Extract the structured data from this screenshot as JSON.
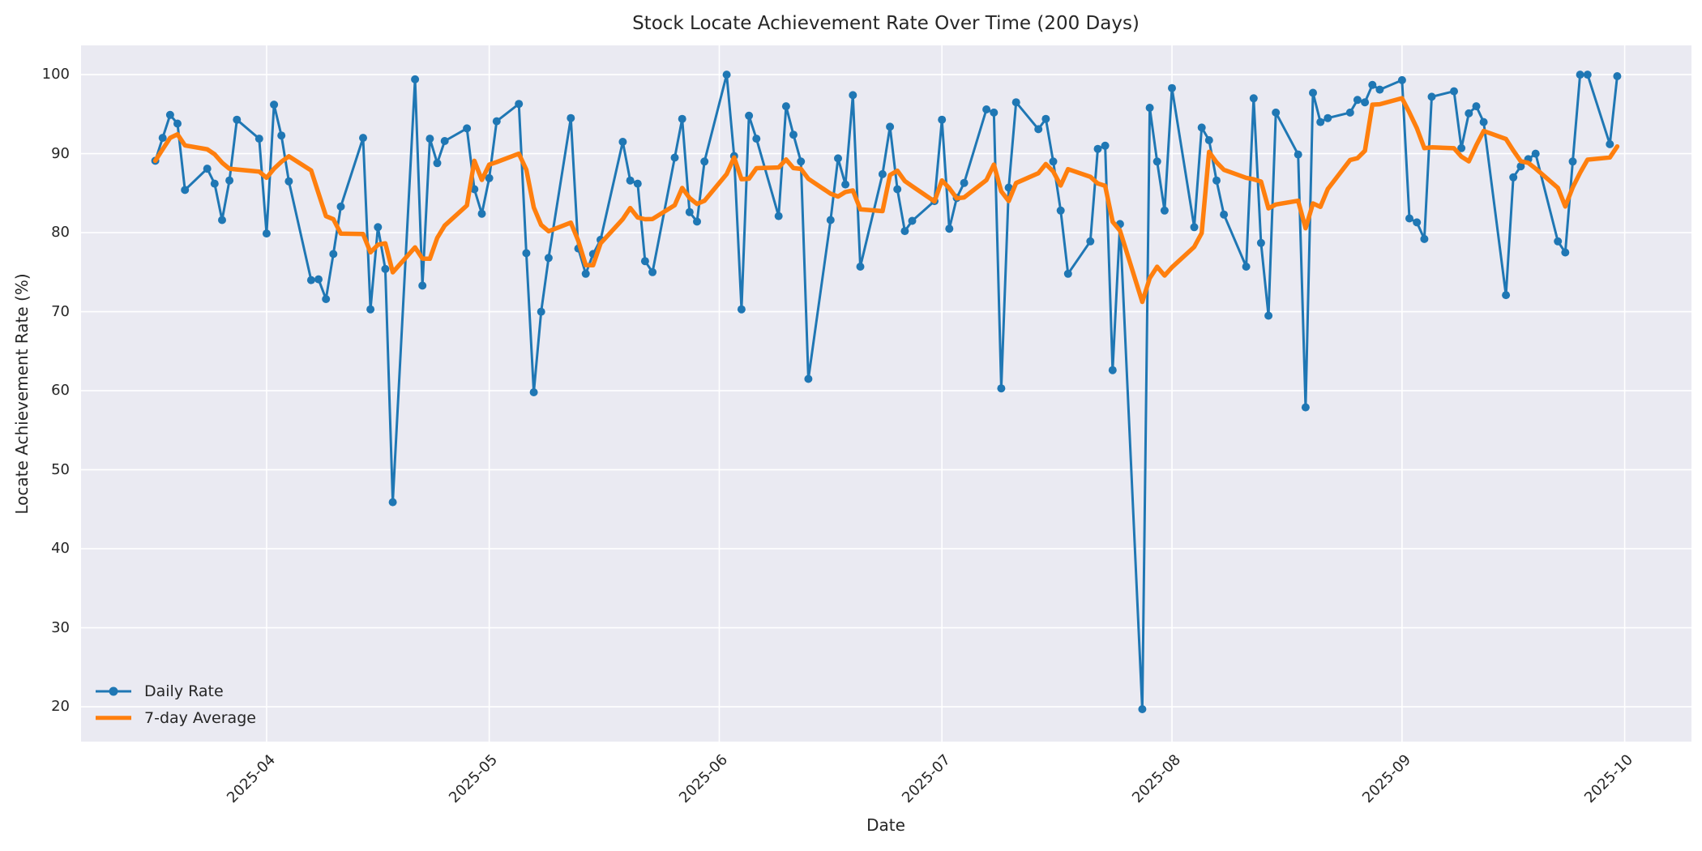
{
  "chart_data": {
    "type": "line",
    "title": "Stock Locate Achievement Rate Over Time (200 Days)",
    "xlabel": "Date",
    "ylabel": "Locate Achievement Rate (%)",
    "x_ticks": [
      "2025-04",
      "2025-05",
      "2025-06",
      "2025-07",
      "2025-08",
      "2025-09",
      "2025-10"
    ],
    "y_ticks": [
      20,
      30,
      40,
      50,
      60,
      70,
      80,
      90,
      100
    ],
    "xlim": [
      "2025-03-07",
      "2025-10-10"
    ],
    "ylim": [
      15.6,
      103.7
    ],
    "grid": true,
    "legend_position": "lower left",
    "plot_bg_color": "#eaeaf2",
    "grid_color": "#ffffff",
    "text_color": "#262626",
    "series": [
      {
        "name": "Daily Rate",
        "color": "#1f77b4",
        "marker": "circle",
        "line_width": 3,
        "dates": [
          "2025-03-17",
          "2025-03-18",
          "2025-03-19",
          "2025-03-20",
          "2025-03-21",
          "2025-03-24",
          "2025-03-25",
          "2025-03-26",
          "2025-03-27",
          "2025-03-28",
          "2025-03-31",
          "2025-04-01",
          "2025-04-02",
          "2025-04-03",
          "2025-04-04",
          "2025-04-07",
          "2025-04-08",
          "2025-04-09",
          "2025-04-10",
          "2025-04-11",
          "2025-04-14",
          "2025-04-15",
          "2025-04-16",
          "2025-04-17",
          "2025-04-18",
          "2025-04-21",
          "2025-04-22",
          "2025-04-23",
          "2025-04-24",
          "2025-04-25",
          "2025-04-28",
          "2025-04-29",
          "2025-04-30",
          "2025-05-01",
          "2025-05-02",
          "2025-05-05",
          "2025-05-06",
          "2025-05-07",
          "2025-05-08",
          "2025-05-09",
          "2025-05-12",
          "2025-05-13",
          "2025-05-14",
          "2025-05-15",
          "2025-05-16",
          "2025-05-19",
          "2025-05-20",
          "2025-05-21",
          "2025-05-22",
          "2025-05-23",
          "2025-05-26",
          "2025-05-27",
          "2025-05-28",
          "2025-05-29",
          "2025-05-30",
          "2025-06-02",
          "2025-06-03",
          "2025-06-04",
          "2025-06-05",
          "2025-06-06",
          "2025-06-09",
          "2025-06-10",
          "2025-06-11",
          "2025-06-12",
          "2025-06-13",
          "2025-06-16",
          "2025-06-17",
          "2025-06-18",
          "2025-06-19",
          "2025-06-20",
          "2025-06-23",
          "2025-06-24",
          "2025-06-25",
          "2025-06-26",
          "2025-06-27",
          "2025-06-30",
          "2025-07-01",
          "2025-07-02",
          "2025-07-03",
          "2025-07-04",
          "2025-07-07",
          "2025-07-08",
          "2025-07-09",
          "2025-07-10",
          "2025-07-11",
          "2025-07-14",
          "2025-07-15",
          "2025-07-16",
          "2025-07-17",
          "2025-07-18",
          "2025-07-21",
          "2025-07-22",
          "2025-07-23",
          "2025-07-24",
          "2025-07-25",
          "2025-07-28",
          "2025-07-29",
          "2025-07-30",
          "2025-07-31",
          "2025-08-01",
          "2025-08-04",
          "2025-08-05",
          "2025-08-06",
          "2025-08-07",
          "2025-08-08",
          "2025-08-11",
          "2025-08-12",
          "2025-08-13",
          "2025-08-14",
          "2025-08-15",
          "2025-08-18",
          "2025-08-19",
          "2025-08-20",
          "2025-08-21",
          "2025-08-22",
          "2025-08-25",
          "2025-08-26",
          "2025-08-27",
          "2025-08-28",
          "2025-08-29",
          "2025-09-01",
          "2025-09-02",
          "2025-09-03",
          "2025-09-04",
          "2025-09-05",
          "2025-09-08",
          "2025-09-09",
          "2025-09-10",
          "2025-09-11",
          "2025-09-12",
          "2025-09-15",
          "2025-09-16",
          "2025-09-17",
          "2025-09-18",
          "2025-09-19",
          "2025-09-22",
          "2025-09-23",
          "2025-09-24",
          "2025-09-25",
          "2025-09-26",
          "2025-09-29",
          "2025-09-30"
        ],
        "values": [
          89.1,
          92.0,
          94.9,
          93.8,
          85.4,
          88.1,
          86.2,
          81.6,
          86.6,
          94.3,
          91.9,
          79.9,
          96.2,
          92.3,
          86.5,
          74.0,
          74.1,
          71.6,
          77.3,
          83.3,
          92.0,
          70.3,
          80.7,
          75.4,
          45.9,
          99.4,
          73.3,
          91.9,
          88.8,
          91.6,
          93.2,
          85.5,
          82.4,
          86.9,
          94.1,
          96.3,
          77.4,
          59.8,
          70.0,
          76.8,
          94.5,
          78.0,
          74.8,
          77.3,
          79.1,
          91.5,
          86.6,
          86.2,
          76.4,
          75.0,
          89.5,
          94.4,
          82.6,
          81.4,
          89.0,
          100.0,
          89.7,
          70.3,
          94.8,
          91.9,
          82.1,
          96.0,
          92.4,
          89.0,
          61.5,
          81.6,
          89.4,
          86.1,
          97.4,
          75.7,
          87.4,
          93.4,
          85.5,
          80.2,
          81.5,
          84.0,
          94.3,
          80.5,
          84.4,
          86.3,
          95.6,
          95.2,
          60.3,
          85.7,
          96.5,
          93.1,
          94.4,
          89.0,
          82.8,
          74.8,
          78.9,
          90.6,
          91.0,
          62.6,
          81.1,
          19.7,
          95.8,
          89.0,
          82.8,
          98.3,
          80.7,
          93.3,
          91.7,
          86.6,
          82.3,
          75.7,
          97.0,
          78.7,
          69.5,
          95.2,
          89.9,
          57.9,
          97.7,
          94.0,
          94.5,
          95.2,
          96.8,
          96.5,
          98.7,
          98.1,
          99.3,
          81.8,
          81.3,
          79.2,
          97.2,
          97.9,
          90.7,
          95.1,
          96.0,
          94.0,
          72.1,
          87.0,
          88.4,
          89.3,
          90.0,
          78.9,
          77.5,
          89.0,
          100.0,
          100.0,
          91.2,
          99.8
        ]
      },
      {
        "name": "7-day Average",
        "color": "#ff7f0e",
        "marker": "none",
        "line_width": 5.5,
        "derived_from": "Daily Rate",
        "rolling_window": 7
      }
    ]
  }
}
